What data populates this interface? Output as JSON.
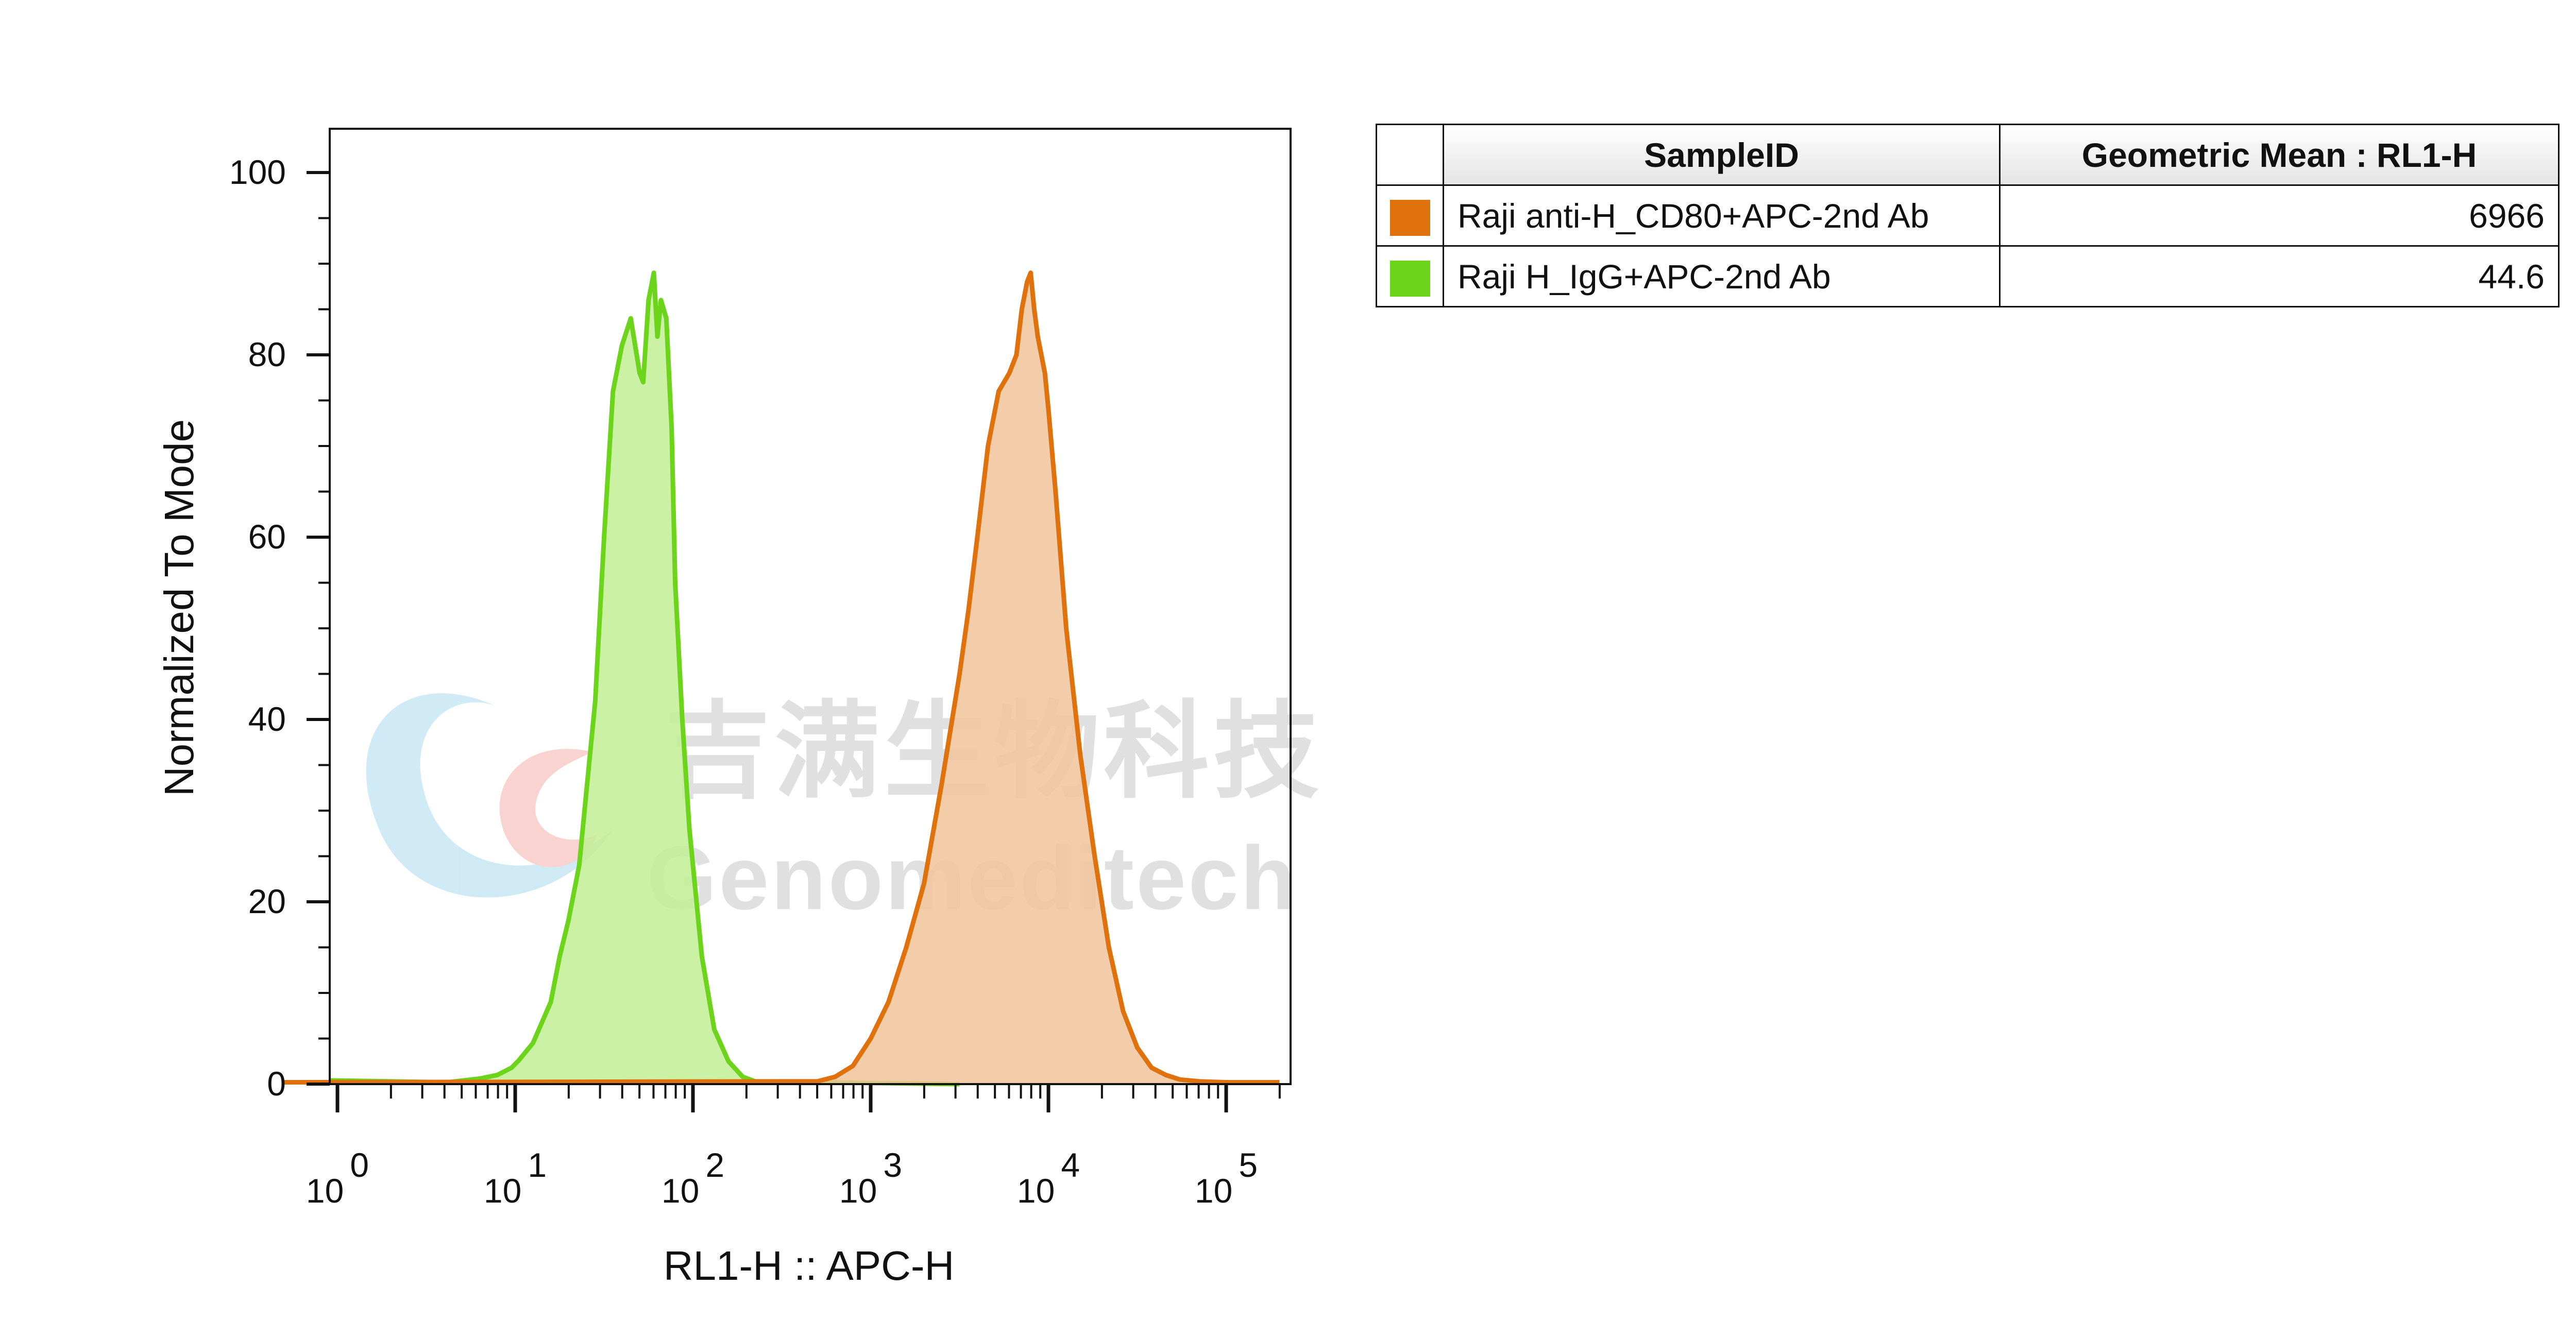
{
  "chart_data": {
    "type": "area",
    "title": "",
    "xlabel": "RL1-H :: APC-H",
    "ylabel": "Normalized To Mode",
    "x_scale": "biexponential",
    "xlim": [
      -0.3,
      5.5
    ],
    "ylim": [
      0,
      105
    ],
    "x_tick_labels": [
      {
        "base": "10",
        "exp": "0",
        "value": 1
      },
      {
        "base": "10",
        "exp": "1",
        "value": 10
      },
      {
        "base": "10",
        "exp": "2",
        "value": 100
      },
      {
        "base": "10",
        "exp": "3",
        "value": 1000
      },
      {
        "base": "10",
        "exp": "4",
        "value": 10000
      },
      {
        "base": "10",
        "exp": "5",
        "value": 100000
      }
    ],
    "y_ticks": [
      0,
      20,
      40,
      60,
      80,
      100
    ],
    "y_tick_labels": [
      "0",
      "20",
      "40",
      "60",
      "80",
      "100"
    ],
    "grid": false,
    "legend_position": "right",
    "series": [
      {
        "name": "Raji H_IgG+APC-2nd Ab",
        "line_color": "#6cd41a",
        "fill_color": "#c2ef94",
        "x_log10": [
          -0.05,
          0.62,
          0.8,
          0.9,
          0.98,
          1.02,
          1.1,
          1.2,
          1.25,
          1.3,
          1.36,
          1.4,
          1.45,
          1.5,
          1.55,
          1.6,
          1.65,
          1.7,
          1.72,
          1.75,
          1.78,
          1.8,
          1.82,
          1.85,
          1.88,
          1.9,
          1.94,
          1.98,
          2.05,
          2.12,
          2.2,
          2.28,
          2.35,
          3.5
        ],
        "y": [
          0.4,
          0.2,
          0.6,
          1.0,
          1.8,
          2.6,
          4.5,
          9.0,
          14.0,
          18.0,
          24.0,
          32.0,
          42.0,
          60.0,
          76.0,
          81.0,
          84.0,
          78.0,
          77.0,
          86.0,
          89.0,
          82.0,
          86.0,
          84.0,
          72.0,
          55.0,
          40.0,
          28.0,
          14.0,
          6.0,
          2.5,
          0.8,
          0.3,
          0.0
        ]
      },
      {
        "name": "Raji anti-H_CD80+APC-2nd Ab",
        "line_color": "#e0720e",
        "fill_color": "#f1c49b",
        "x_log10": [
          -0.3,
          2.7,
          2.8,
          2.9,
          3.0,
          3.1,
          3.2,
          3.3,
          3.4,
          3.5,
          3.55,
          3.6,
          3.66,
          3.72,
          3.78,
          3.82,
          3.85,
          3.88,
          3.9,
          3.92,
          3.94,
          3.96,
          3.98,
          4.0,
          4.04,
          4.1,
          4.18,
          4.26,
          4.34,
          4.42,
          4.5,
          4.58,
          4.66,
          4.74,
          4.85,
          5.0,
          5.3
        ],
        "y": [
          0.2,
          0.3,
          0.8,
          2.0,
          5.0,
          9.0,
          15.0,
          22.0,
          33.0,
          45.0,
          52.0,
          60.0,
          70.0,
          76.0,
          78.0,
          80.0,
          85.0,
          88.0,
          89.0,
          85.0,
          82.0,
          80.0,
          78.0,
          74.0,
          65.0,
          50.0,
          36.0,
          25.0,
          15.0,
          8.0,
          4.0,
          1.8,
          1.0,
          0.5,
          0.3,
          0.2,
          0.2
        ]
      }
    ]
  },
  "watermark": {
    "cn_text": "吉满生物科技",
    "en_text": "Genomeditech"
  },
  "legend_table": {
    "headers": {
      "sample_id": "SampleID",
      "geo_mean": "Geometric Mean : RL1-H"
    },
    "rows": [
      {
        "sample": "Raji anti-H_CD80+APC-2nd Ab",
        "value": "6966",
        "swatch_color": "#e0720e"
      },
      {
        "sample": "Raji H_IgG+APC-2nd Ab",
        "value": "44.6",
        "swatch_color": "#6cd41a"
      }
    ]
  }
}
